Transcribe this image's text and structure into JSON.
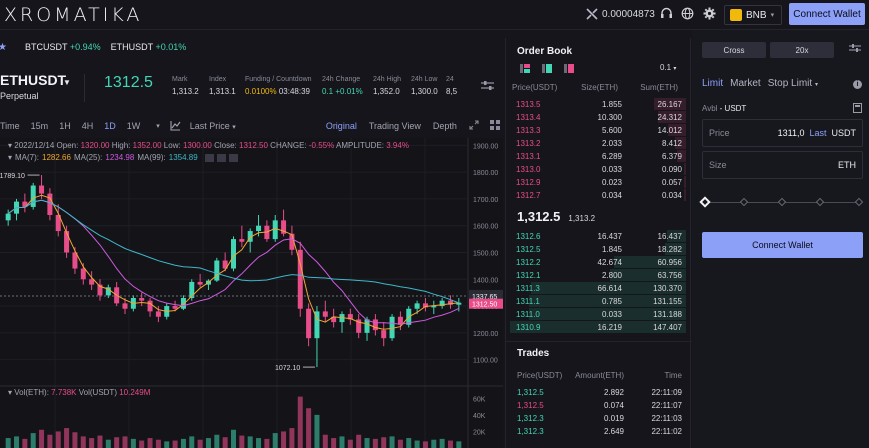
{
  "app": {
    "logo": "XROMATIKA"
  },
  "topbar": {
    "price_value": "0.00004873",
    "network": "BNB",
    "connect_label": "Connect Wallet"
  },
  "ticker": [
    {
      "symbol": "BTCUSDT",
      "change": "+0.94%"
    },
    {
      "symbol": "ETHUSDT",
      "change": "+0.01%"
    }
  ],
  "market": {
    "symbol": "ETHUSDT",
    "type": "Perpetual",
    "last_price": "1312.5",
    "stats": [
      {
        "label": "Mark",
        "value": "1,313.2"
      },
      {
        "label": "Index",
        "value": "1,313.1"
      },
      {
        "label": "Funding / Countdown",
        "value_a": "0.0100%",
        "value_b": "03:48:39"
      },
      {
        "label": "24h Change",
        "value_a": "0.1",
        "value_b": "+0.01%"
      },
      {
        "label": "24h High",
        "value": "1,352.0"
      },
      {
        "label": "24h Low",
        "value": "1,300.0"
      },
      {
        "label": "24",
        "value": "8,5"
      }
    ]
  },
  "chart_toolbar": {
    "intervals": [
      "Time",
      "15m",
      "1H",
      "4H",
      "1D",
      "1W"
    ],
    "active_interval": "1D",
    "price_type": "Last Price",
    "views": [
      "Original",
      "Trading View",
      "Depth"
    ],
    "active_view": "Original"
  },
  "chart_legend": {
    "ohlc": "2022/12/14 Open: 1320.00 High: 1352.00 Low: 1300.00 Close: 1312.50 CHANGE: -0.55% AMPLITUDE: 3.94%",
    "date": "2022/12/14",
    "open_label": "Open:",
    "open": "1320.00",
    "high_label": "High:",
    "high": "1352.00",
    "low_label": "Low:",
    "low": "1300.00",
    "close_label": "Close:",
    "close": "1312.50",
    "change_label": "CHANGE:",
    "change": "-0.55%",
    "amp_label": "AMPLITUDE:",
    "amp": "3.94%",
    "ma7_label": "MA(7):",
    "ma7": "1282.66",
    "ma25_label": "MA(25):",
    "ma25": "1234.98",
    "ma99_label": "MA(99):",
    "ma99": "1354.89",
    "vol_label": "Vol(ETH):",
    "vol": "7.738K",
    "volusdt_label": "Vol(USDT)",
    "volusdt": "10.249M"
  },
  "chart_data": {
    "type": "candlestick",
    "y_ticks": [
      "1900.00",
      "1800.00",
      "1700.00",
      "1600.00",
      "1500.00",
      "1400.00",
      "1300.00",
      "1200.00",
      "1100.00"
    ],
    "vol_ticks": [
      "60K",
      "40K",
      "20K"
    ],
    "ylim": [
      1050,
      1920
    ],
    "price_labels": {
      "current": "1337.65",
      "last": "1312.50",
      "high_mark": "1789.10",
      "low_mark": "1072.10"
    },
    "candles": [
      [
        1620,
        1660,
        1600,
        1645
      ],
      [
        1645,
        1700,
        1620,
        1690
      ],
      [
        1690,
        1720,
        1650,
        1670
      ],
      [
        1670,
        1760,
        1660,
        1750
      ],
      [
        1750,
        1789.1,
        1700,
        1720
      ],
      [
        1720,
        1740,
        1620,
        1640
      ],
      [
        1640,
        1680,
        1560,
        1580
      ],
      [
        1580,
        1600,
        1480,
        1500
      ],
      [
        1500,
        1520,
        1420,
        1440
      ],
      [
        1440,
        1460,
        1380,
        1400
      ],
      [
        1400,
        1430,
        1360,
        1380
      ],
      [
        1380,
        1400,
        1320,
        1340
      ],
      [
        1340,
        1380,
        1330,
        1370
      ],
      [
        1370,
        1390,
        1300,
        1310
      ],
      [
        1310,
        1330,
        1270,
        1290
      ],
      [
        1290,
        1340,
        1280,
        1330
      ],
      [
        1330,
        1350,
        1300,
        1320
      ],
      [
        1320,
        1330,
        1260,
        1280
      ],
      [
        1280,
        1300,
        1240,
        1260
      ],
      [
        1260,
        1310,
        1250,
        1300
      ],
      [
        1300,
        1320,
        1280,
        1290
      ],
      [
        1290,
        1340,
        1285,
        1330
      ],
      [
        1330,
        1400,
        1320,
        1390
      ],
      [
        1390,
        1420,
        1370,
        1380
      ],
      [
        1380,
        1400,
        1360,
        1395
      ],
      [
        1395,
        1480,
        1390,
        1470
      ],
      [
        1470,
        1500,
        1430,
        1440
      ],
      [
        1440,
        1560,
        1430,
        1550
      ],
      [
        1550,
        1600,
        1520,
        1540
      ],
      [
        1540,
        1590,
        1500,
        1580
      ],
      [
        1580,
        1640,
        1560,
        1600
      ],
      [
        1600,
        1620,
        1540,
        1550
      ],
      [
        1550,
        1640,
        1540,
        1620
      ],
      [
        1620,
        1660,
        1560,
        1570
      ],
      [
        1570,
        1600,
        1490,
        1510
      ],
      [
        1510,
        1540,
        1260,
        1290
      ],
      [
        1290,
        1310,
        1150,
        1180
      ],
      [
        1180,
        1300,
        1072.1,
        1280
      ],
      [
        1280,
        1320,
        1240,
        1260
      ],
      [
        1260,
        1290,
        1220,
        1240
      ],
      [
        1240,
        1280,
        1200,
        1270
      ],
      [
        1270,
        1290,
        1230,
        1250
      ],
      [
        1250,
        1270,
        1180,
        1200
      ],
      [
        1200,
        1260,
        1170,
        1250
      ],
      [
        1250,
        1270,
        1190,
        1210
      ],
      [
        1210,
        1240,
        1150,
        1180
      ],
      [
        1180,
        1270,
        1170,
        1260
      ],
      [
        1260,
        1280,
        1210,
        1230
      ],
      [
        1230,
        1300,
        1220,
        1290
      ],
      [
        1290,
        1320,
        1270,
        1310
      ],
      [
        1310,
        1330,
        1280,
        1295
      ],
      [
        1295,
        1320,
        1270,
        1300
      ],
      [
        1300,
        1330,
        1290,
        1320
      ],
      [
        1320,
        1340,
        1290,
        1305
      ],
      [
        1305,
        1330,
        1280,
        1312.5
      ]
    ],
    "volumes": [
      12,
      14,
      11,
      18,
      22,
      16,
      20,
      24,
      19,
      14,
      12,
      15,
      10,
      13,
      14,
      11,
      9,
      12,
      10,
      8,
      9,
      11,
      14,
      10,
      12,
      16,
      13,
      22,
      15,
      14,
      12,
      11,
      18,
      20,
      24,
      62,
      48,
      40,
      16,
      12,
      14,
      10,
      16,
      12,
      11,
      13,
      14,
      10,
      12,
      9,
      8,
      10,
      11,
      9,
      8
    ]
  },
  "orderbook": {
    "title": "Order Book",
    "step": "0.1",
    "headers": [
      "Price(USDT)",
      "Size(ETH)",
      "Sum(ETH)"
    ],
    "asks": [
      [
        "1313.5",
        "1.855",
        "26.167"
      ],
      [
        "1313.4",
        "10.300",
        "24.312"
      ],
      [
        "1313.3",
        "5.600",
        "14.012"
      ],
      [
        "1313.2",
        "2.033",
        "8.412"
      ],
      [
        "1313.1",
        "6.289",
        "6.379"
      ],
      [
        "1313.0",
        "0.033",
        "0.090"
      ],
      [
        "1312.9",
        "0.023",
        "0.057"
      ],
      [
        "1312.7",
        "0.034",
        "0.034"
      ]
    ],
    "mid_price": "1,312.5",
    "mid_mark": "1,313.2",
    "bids": [
      [
        "1312.6",
        "16.437",
        "16.437"
      ],
      [
        "1312.5",
        "1.845",
        "18.282"
      ],
      [
        "1312.2",
        "42.674",
        "60.956"
      ],
      [
        "1312.1",
        "2.800",
        "63.756"
      ],
      [
        "1311.3",
        "66.614",
        "130.370"
      ],
      [
        "1311.1",
        "0.785",
        "131.155"
      ],
      [
        "1311.0",
        "0.033",
        "131.188"
      ],
      [
        "1310.9",
        "16.219",
        "147.407"
      ]
    ],
    "ask_depth": [
      0.18,
      0.16,
      0.1,
      0.06,
      0.05,
      0.01,
      0.01,
      0.01
    ],
    "bid_depth": [
      0.11,
      0.12,
      0.41,
      0.43,
      0.88,
      0.89,
      0.89,
      1.0
    ]
  },
  "trades": {
    "title": "Trades",
    "headers": [
      "Price(USDT)",
      "Amount(ETH)",
      "Time"
    ],
    "rows": [
      [
        "1,312.5",
        "2.892",
        "22:11:09",
        "buy"
      ],
      [
        "1,312.5",
        "0.074",
        "22:11:07",
        "sell"
      ],
      [
        "1,312.3",
        "0.019",
        "22:11:03",
        "buy"
      ],
      [
        "1,312.3",
        "2.649",
        "22:11:02",
        "buy"
      ]
    ]
  },
  "trade_panel": {
    "margin_mode": "Cross",
    "leverage": "20x",
    "order_tabs": [
      "Limit",
      "Market",
      "Stop Limit"
    ],
    "active_tab": "Limit",
    "avbl_label": "Avbl",
    "avbl_value": "- USDT",
    "price_label": "Price",
    "price_value": "1311,0",
    "price_last": "Last",
    "price_unit": "USDT",
    "size_label": "Size",
    "size_unit": "ETH",
    "connect_label": "Connect Wallet"
  },
  "colors": {
    "up": "#43d6b5",
    "down": "#e84d8a",
    "accent": "#8da0f7",
    "bg": "#15151b"
  }
}
